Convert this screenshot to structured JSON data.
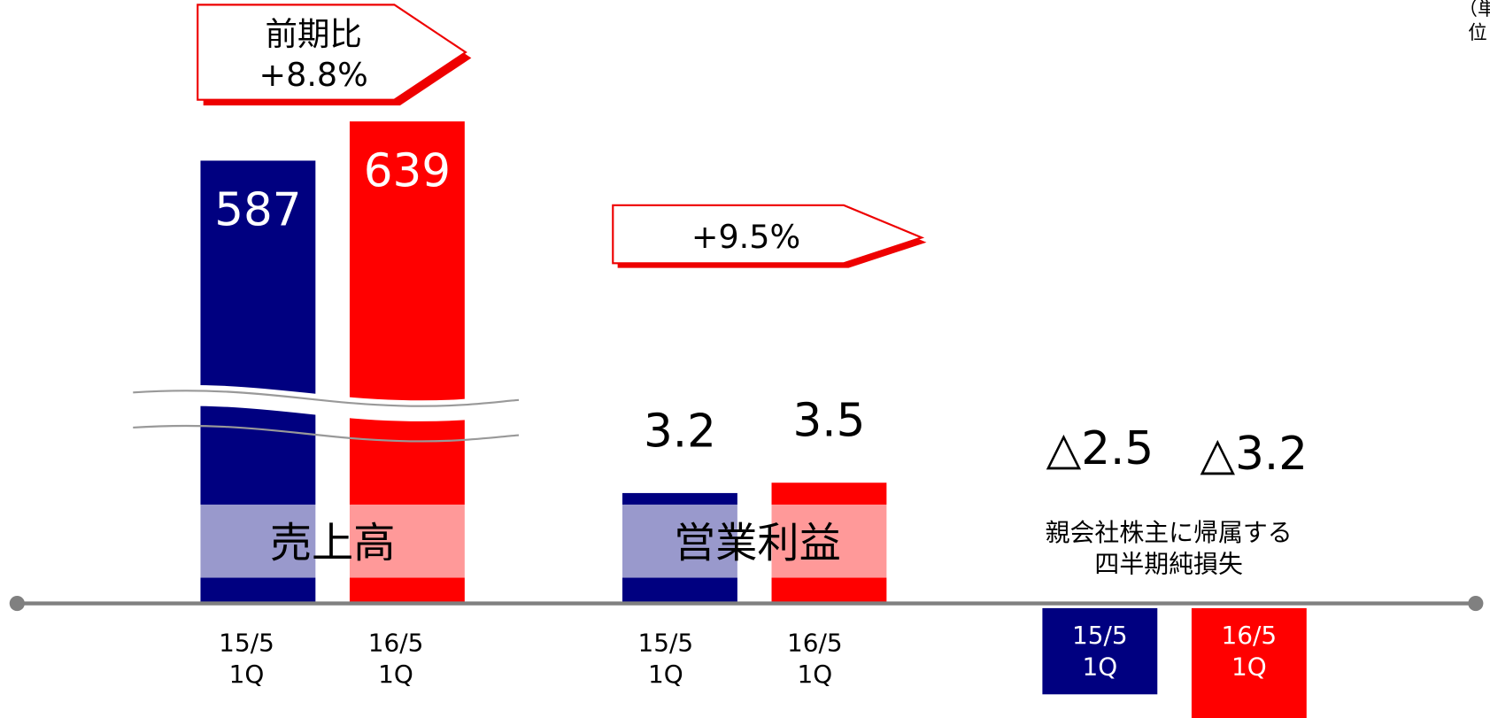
{
  "unit": "（単位",
  "chart_data": [
    {
      "type": "bar",
      "title": "売上高",
      "categories": [
        "15/5\n1Q",
        "16/5\n1Q"
      ],
      "values": [
        587,
        639
      ],
      "colors": [
        "#000080",
        "#ff0000"
      ],
      "ylim": [
        -160,
        800
      ],
      "annotation": "前期比\n+8.8%"
    },
    {
      "type": "bar",
      "title": "営業利益",
      "categories": [
        "15/5\n1Q",
        "16/5\n1Q"
      ],
      "values": [
        3.2,
        3.5
      ],
      "colors": [
        "#000080",
        "#ff0000"
      ],
      "ylim": [
        -3.5,
        17.5
      ],
      "annotation": "+9.5%"
    },
    {
      "type": "bar",
      "title": "親会社株主に帰属する\n四半期純損失",
      "categories": [
        "15/5\n1Q",
        "16/5\n1Q"
      ],
      "values": [
        -2.5,
        -3.2
      ],
      "value_labels": [
        "△2.5",
        "△3.2"
      ],
      "colors": [
        "#000080",
        "#ff0000"
      ],
      "ylim": [
        -3.5,
        17.5
      ]
    }
  ]
}
